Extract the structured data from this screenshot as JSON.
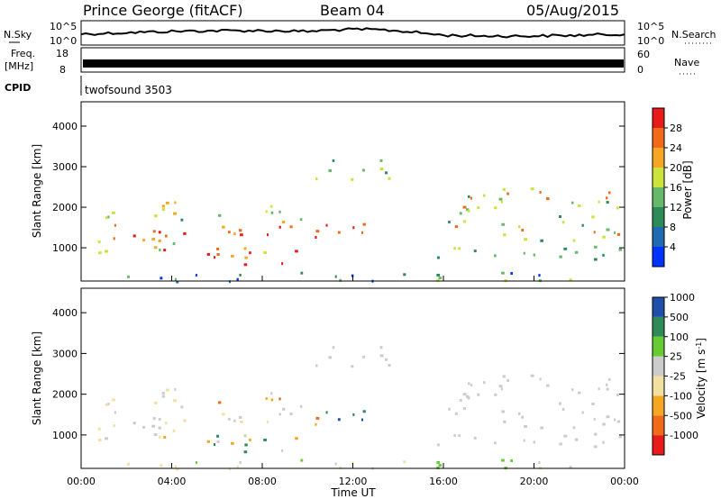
{
  "header": {
    "station": "Prince George (fitACF)",
    "beam": "Beam 04",
    "date": "05/Aug/2015"
  },
  "panels": {
    "nsky": {
      "label": "N.Sky",
      "y_top": "10^5",
      "y_bot": "10^0",
      "right_label": "N.Search",
      "right_top": "10^5",
      "right_bot": "10^0"
    },
    "freq": {
      "label_line1": "Freq.",
      "label_line2": "[MHz]",
      "y_top": "18",
      "y_bot": "8",
      "right_label": "Nave",
      "right_top": "60",
      "right_bot": "0"
    },
    "cpid": {
      "label": "CPID",
      "value": "twofsound 3503"
    }
  },
  "chart_data": [
    {
      "type": "heatmap",
      "name": "power",
      "ylabel": "Slant Range [km]",
      "xlabel": "Time UT",
      "yticks": [
        "1000",
        "2000",
        "3000",
        "4000"
      ],
      "ylim": [
        180,
        4600
      ],
      "xlim": [
        0,
        24
      ],
      "colorbar": {
        "label": "Power [dB]",
        "colors": [
          "#0033ff",
          "#1f6ab0",
          "#2e8b57",
          "#66b96a",
          "#cde23a",
          "#f5a623",
          "#f06a1a",
          "#e81a1a"
        ],
        "ticks": [
          "4",
          "8",
          "12",
          "16",
          "20",
          "24",
          "28"
        ]
      }
    },
    {
      "type": "heatmap",
      "name": "velocity",
      "ylabel": "Slant Range [km]",
      "xlabel": "Time UT",
      "yticks": [
        "1000",
        "2000",
        "3000",
        "4000"
      ],
      "ylim": [
        180,
        4600
      ],
      "xlim": [
        0,
        24
      ],
      "colorbar": {
        "label": "Velocity [m s^-1]",
        "colors": [
          "#e81a1a",
          "#f06a1a",
          "#f5a623",
          "#f2e0a0",
          "#cccccc",
          "#66cc33",
          "#2e8b57",
          "#1f4fa8"
        ],
        "ticks": [
          "-1000",
          "-500",
          "-100",
          "-25",
          "25",
          "100",
          "500",
          "1000"
        ]
      }
    }
  ],
  "time_axis": {
    "label": "Time UT",
    "ticks": [
      "00:00",
      "04:00",
      "08:00",
      "12:00",
      "16:00",
      "20:00",
      "00:00"
    ]
  }
}
